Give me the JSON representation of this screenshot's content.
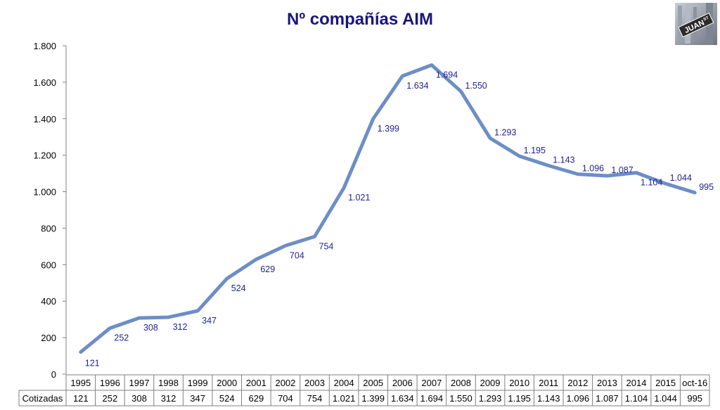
{
  "chart_data": {
    "type": "line",
    "title": "Nº compañías AIM",
    "xlabel": "",
    "ylabel": "",
    "categories": [
      "1995",
      "1996",
      "1997",
      "1998",
      "1999",
      "2000",
      "2001",
      "2002",
      "2003",
      "2004",
      "2005",
      "2006",
      "2007",
      "2008",
      "2009",
      "2010",
      "2011",
      "2012",
      "2013",
      "2014",
      "2015",
      "oct-16"
    ],
    "series": [
      {
        "name": "Cotizadas",
        "values": [
          121,
          252,
          308,
          312,
          347,
          524,
          629,
          704,
          754,
          1021,
          1399,
          1634,
          1694,
          1550,
          1293,
          1195,
          1143,
          1096,
          1087,
          1104,
          1044,
          995
        ],
        "labels": [
          "121",
          "252",
          "308",
          "312",
          "347",
          "524",
          "629",
          "704",
          "754",
          "1.021",
          "1.399",
          "1.634",
          "1.694",
          "1.550",
          "1.293",
          "1.195",
          "1.143",
          "1.096",
          "1.087",
          "1.104",
          "1.044",
          "995"
        ]
      }
    ],
    "ylim": [
      0,
      1800
    ],
    "yticks": [
      0,
      200,
      400,
      600,
      800,
      1000,
      1200,
      1400,
      1600,
      1800
    ],
    "ytick_labels": [
      "0",
      "200",
      "400",
      "600",
      "800",
      "1.000",
      "1.200",
      "1.400",
      "1.600",
      "1.800"
    ],
    "grid": false,
    "legend": "none",
    "data_table": true,
    "line_color": "#6d8ec5"
  },
  "logo": {
    "text": "JUAN",
    "superscript": "ST"
  }
}
